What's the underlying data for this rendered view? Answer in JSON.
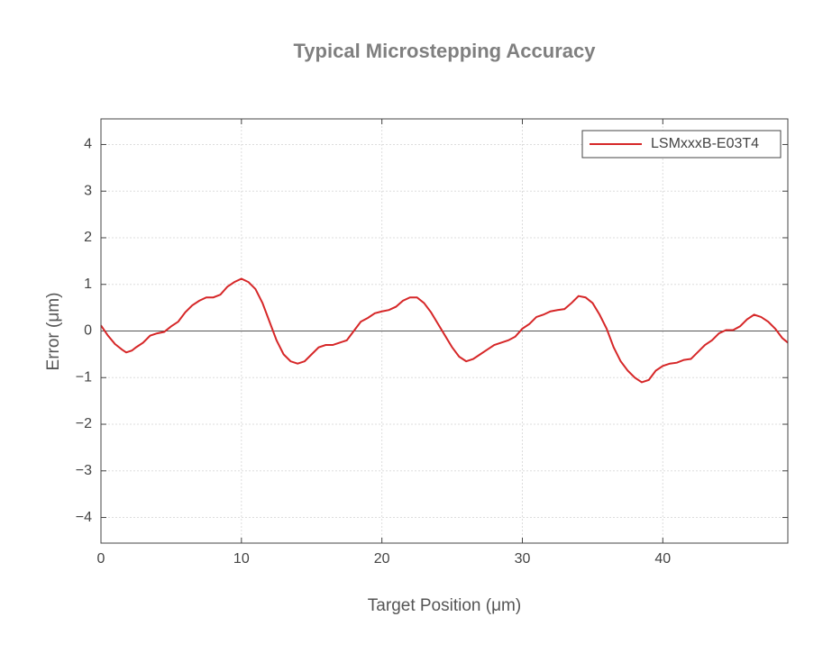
{
  "chart_data": {
    "type": "line",
    "title": "Typical Microstepping Accuracy",
    "x_label": "Target Position (μm)",
    "y_label": "Error (μm)",
    "x": [
      0,
      0.5,
      1,
      1.5,
      1.8,
      2.2,
      2.5,
      3,
      3.5,
      4,
      4.5,
      5,
      5.5,
      6,
      6.5,
      7,
      7.5,
      8,
      8.5,
      9,
      9.5,
      10,
      10.5,
      11,
      11.5,
      12,
      12.5,
      13,
      13.5,
      14,
      14.5,
      15,
      15.5,
      16,
      16.5,
      17,
      17.5,
      18,
      18.5,
      19,
      19.5,
      20,
      20.5,
      21,
      21.5,
      22,
      22.5,
      23,
      23.5,
      24,
      24.5,
      25,
      25.5,
      26,
      26.5,
      27,
      27.5,
      28,
      28.5,
      29,
      29.5,
      30,
      30.5,
      31,
      31.5,
      32,
      32.5,
      33,
      33.5,
      34,
      34.5,
      35,
      35.5,
      36,
      36.5,
      37,
      37.5,
      38,
      38.5,
      39,
      39.5,
      40,
      40.5,
      41,
      41.5,
      42,
      42.5,
      43,
      43.5,
      44,
      44.5,
      45,
      45.5,
      46,
      46.5,
      47,
      47.5,
      48,
      48.5,
      48.9
    ],
    "series": [
      {
        "name": "LSMxxxB-E03T4",
        "color": "#d62728",
        "values": [
          0.12,
          -0.1,
          -0.28,
          -0.4,
          -0.46,
          -0.42,
          -0.35,
          -0.25,
          -0.1,
          -0.05,
          -0.02,
          0.1,
          0.2,
          0.4,
          0.55,
          0.65,
          0.72,
          0.72,
          0.78,
          0.95,
          1.05,
          1.12,
          1.05,
          0.9,
          0.6,
          0.2,
          -0.2,
          -0.5,
          -0.65,
          -0.7,
          -0.65,
          -0.5,
          -0.35,
          -0.3,
          -0.3,
          -0.25,
          -0.2,
          0,
          0.2,
          0.28,
          0.38,
          0.42,
          0.45,
          0.52,
          0.65,
          0.72,
          0.72,
          0.6,
          0.4,
          0.15,
          -0.1,
          -0.35,
          -0.55,
          -0.65,
          -0.6,
          -0.5,
          -0.4,
          -0.3,
          -0.25,
          -0.2,
          -0.12,
          0.05,
          0.15,
          0.3,
          0.35,
          0.42,
          0.45,
          0.47,
          0.6,
          0.75,
          0.72,
          0.6,
          0.35,
          0.05,
          -0.35,
          -0.65,
          -0.85,
          -1.0,
          -1.1,
          -1.05,
          -0.85,
          -0.75,
          -0.7,
          -0.68,
          -0.62,
          -0.6,
          -0.45,
          -0.3,
          -0.2,
          -0.05,
          0.02,
          0.02,
          0.1,
          0.25,
          0.35,
          0.3,
          0.2,
          0.05,
          -0.15,
          -0.25
        ]
      }
    ],
    "xlim": [
      0,
      48.9
    ],
    "xticks": [
      0,
      10,
      20,
      30,
      40
    ],
    "ylim": [
      -4.55,
      4.55
    ],
    "yticks": [
      {
        "value": -4,
        "label": "−4"
      },
      {
        "value": -3,
        "label": "−3"
      },
      {
        "value": -2,
        "label": "−2"
      },
      {
        "value": -1,
        "label": "−1"
      },
      0,
      1,
      2,
      3,
      4
    ],
    "grid": true,
    "zero_line": true,
    "legend": "northeast"
  }
}
